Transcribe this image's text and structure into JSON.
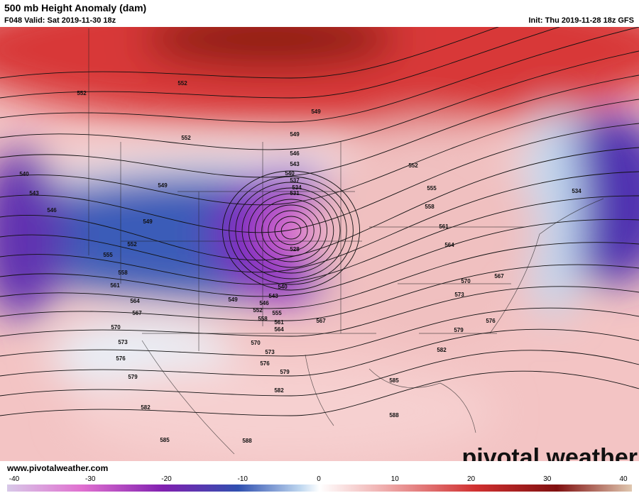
{
  "header": {
    "title": "500 mb Height Anomaly (dam)",
    "valid": "F048 Valid: Sat 2019-11-30 18z",
    "init": "Init: Thu 2019-11-28 18z GFS"
  },
  "contour_labels": [
    552,
    552,
    552,
    549,
    549,
    546,
    543,
    540,
    537,
    534,
    531,
    528,
    540,
    543,
    546,
    549,
    552,
    555,
    558,
    561,
    564,
    567,
    570,
    573,
    576,
    579,
    582,
    585,
    588,
    588,
    585,
    582,
    579,
    576,
    573,
    570,
    567,
    564,
    561,
    558,
    555,
    552,
    549,
    546,
    543,
    540,
    549,
    552,
    555,
    558,
    561,
    564,
    567,
    570,
    573,
    576,
    579,
    582,
    534
  ],
  "watermark": "pivotal weather",
  "footer": {
    "url": "www.pivotalweather.com"
  },
  "colorbar": {
    "ticks": [
      -40,
      -30,
      -20,
      -10,
      0,
      10,
      20,
      30,
      40
    ],
    "lim": [
      -40,
      40
    ]
  }
}
